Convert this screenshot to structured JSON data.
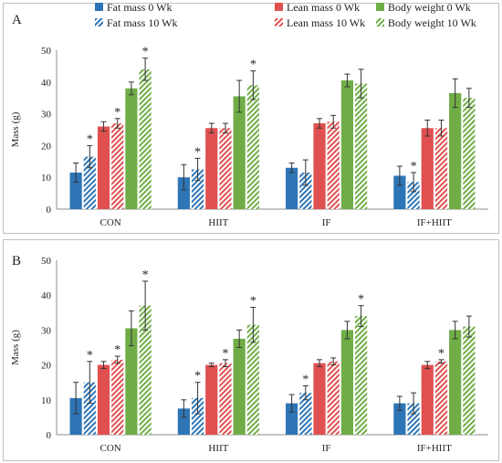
{
  "legend": [
    {
      "label": "Fat mass 0 Wk",
      "color": "#2e75b6",
      "pattern": "solid"
    },
    {
      "label": "Fat mass 10 Wk",
      "color": "#2e75b6",
      "pattern": "hatch"
    },
    {
      "label": "Lean mass 0 Wk",
      "color": "#e05050",
      "pattern": "solid"
    },
    {
      "label": "Lean mass 10 Wk",
      "color": "#e05050",
      "pattern": "hatch"
    },
    {
      "label": "Body weight 0 Wk",
      "color": "#70ad47",
      "pattern": "solid"
    },
    {
      "label": "Body weight 10 Wk",
      "color": "#70ad47",
      "pattern": "hatch"
    }
  ],
  "chart_data": [
    {
      "panel": "A",
      "type": "bar",
      "ylabel": "Mass (g)",
      "ylim": [
        0,
        50
      ],
      "yticks": [
        0,
        10,
        20,
        30,
        40,
        50
      ],
      "categories": [
        "CON",
        "HIIT",
        "IF",
        "IF+HIIT"
      ],
      "series": [
        {
          "name": "Fat mass 0 Wk",
          "values": [
            11.5,
            10.0,
            13.0,
            10.5
          ],
          "errors": [
            3.0,
            4.0,
            1.5,
            3.0
          ],
          "sig": [
            false,
            false,
            false,
            false
          ]
        },
        {
          "name": "Fat mass 10 Wk",
          "values": [
            16.5,
            12.5,
            11.5,
            8.5
          ],
          "errors": [
            3.5,
            3.5,
            4.0,
            3.0
          ],
          "sig": [
            true,
            true,
            false,
            true
          ]
        },
        {
          "name": "Lean mass 0 Wk",
          "values": [
            26.0,
            25.5,
            27.0,
            25.5
          ],
          "errors": [
            1.5,
            1.5,
            1.5,
            2.5
          ],
          "sig": [
            false,
            false,
            false,
            false
          ]
        },
        {
          "name": "Lean mass 10 Wk",
          "values": [
            27.0,
            25.5,
            27.5,
            25.5
          ],
          "errors": [
            1.5,
            1.5,
            2.0,
            2.5
          ],
          "sig": [
            true,
            false,
            false,
            false
          ]
        },
        {
          "name": "Body weight 0 Wk",
          "values": [
            38.0,
            35.5,
            40.5,
            36.5
          ],
          "errors": [
            2.0,
            5.0,
            2.0,
            4.5
          ],
          "sig": [
            false,
            false,
            false,
            false
          ]
        },
        {
          "name": "Body weight 10 Wk",
          "values": [
            44.0,
            39.0,
            39.5,
            35.0
          ],
          "errors": [
            3.5,
            4.5,
            4.5,
            3.0
          ],
          "sig": [
            true,
            true,
            false,
            false
          ]
        }
      ]
    },
    {
      "panel": "B",
      "type": "bar",
      "ylabel": "Mass (g)",
      "ylim": [
        0,
        50
      ],
      "yticks": [
        0,
        10,
        20,
        30,
        40,
        50
      ],
      "categories": [
        "CON",
        "HIIT",
        "IF",
        "IF+HIIT"
      ],
      "series": [
        {
          "name": "Fat mass 0 Wk",
          "values": [
            10.5,
            7.5,
            9.0,
            9.0
          ],
          "errors": [
            4.5,
            2.5,
            2.5,
            2.0
          ],
          "sig": [
            false,
            false,
            false,
            false
          ]
        },
        {
          "name": "Fat mass 10 Wk",
          "values": [
            15.0,
            10.5,
            12.0,
            9.0
          ],
          "errors": [
            6.0,
            4.5,
            2.0,
            3.0
          ],
          "sig": [
            true,
            true,
            true,
            false
          ]
        },
        {
          "name": "Lean mass 0 Wk",
          "values": [
            20.0,
            20.0,
            20.5,
            20.0
          ],
          "errors": [
            1.0,
            0.5,
            1.0,
            1.0
          ],
          "sig": [
            false,
            false,
            false,
            false
          ]
        },
        {
          "name": "Lean mass 10 Wk",
          "values": [
            21.5,
            20.5,
            21.0,
            21.0
          ],
          "errors": [
            1.0,
            1.0,
            1.0,
            0.5
          ],
          "sig": [
            true,
            true,
            false,
            true
          ]
        },
        {
          "name": "Body weight 0 Wk",
          "values": [
            30.5,
            27.5,
            30.0,
            30.0
          ],
          "errors": [
            5.0,
            2.5,
            2.5,
            2.5
          ],
          "sig": [
            false,
            false,
            false,
            false
          ]
        },
        {
          "name": "Body weight 10 Wk",
          "values": [
            37.0,
            31.5,
            34.0,
            31.0
          ],
          "errors": [
            7.0,
            5.0,
            3.0,
            3.0
          ],
          "sig": [
            true,
            true,
            true,
            false
          ]
        }
      ]
    }
  ]
}
